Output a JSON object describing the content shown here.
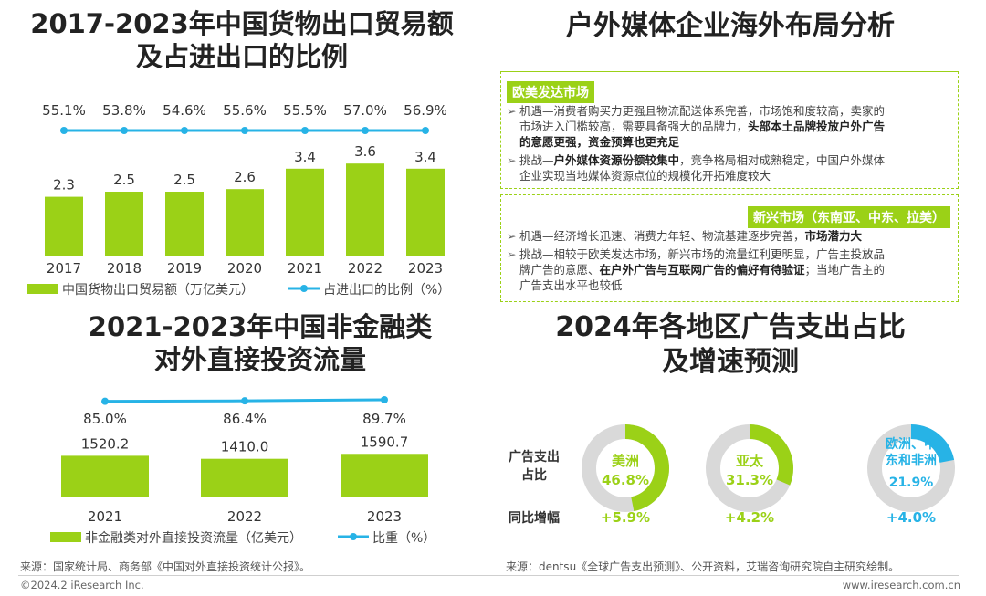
{
  "panel1": {
    "title_line1": "2017-2023年中国货物出口贸易额",
    "title_line2": "及占进出口的比例",
    "legend_bar": "中国货物出口贸易额（万亿美元）",
    "legend_line": "占进出口的比例（%）"
  },
  "panel2": {
    "title": "户外媒体企业海外布局分析",
    "market1": {
      "tag": "欧美发达市场",
      "b1_l1": "机遇—消费者购买力更强且物流配送体系完善，市场饱和度较高，卖家的",
      "b1_l2": "市场进入门槛较高，需要具备强大的品牌力，",
      "b1_l2_bold": "头部本土品牌投放户外广告",
      "b1_l3_bold": "的意愿更强，资金预算也更充足",
      "b2_l1_a": "挑战—",
      "b2_l1_bold": "户外媒体资源份额较集中",
      "b2_l1_b": "，竞争格局相对成熟稳定，中国户外媒体",
      "b2_l2": "企业实现当地媒体资源点位的规模化开拓难度较大"
    },
    "market2": {
      "tag": "新兴市场（东南亚、中东、拉美）",
      "b1_l1_a": "机遇—经济增长迅速、消费力年轻、物流基建逐步完善，",
      "b1_l1_bold": "市场潜力大",
      "b2_l1": "挑战—相较于欧美发达市场，新兴市场的流量红利更明显，广告主投放品",
      "b2_l2_a": "牌广告的意愿、",
      "b2_l2_bold": "在户外广告与互联网广告的偏好有待验证",
      "b2_l2_b": "；当地广告主的",
      "b2_l3": "广告支出水平也较低"
    }
  },
  "panel3": {
    "title_line1": "2021-2023年中国非金融类",
    "title_line2": "对外直接投资流量",
    "legend_bar": "非金融类对外直接投资流量（亿美元）",
    "legend_line": "比重（%）"
  },
  "panel4": {
    "title_line1": "2024年各地区广告支出占比",
    "title_line2": "及增速预测",
    "row_label_share": "广告支出占比",
    "row_label_growth": "同比增幅",
    "regions": [
      {
        "name": "美洲",
        "share": "46.8%",
        "share_value": 46.8,
        "growth": "+5.9%"
      },
      {
        "name": "亚太",
        "share": "31.3%",
        "share_value": 31.3,
        "growth": "+4.2%"
      },
      {
        "name": "欧洲、中东和非洲",
        "share": "21.9%",
        "share_value": 21.9,
        "growth": "+4.0%"
      }
    ]
  },
  "sources": {
    "left": "来源：国家统计局、商务部《中国对外直接投资统计公报》。",
    "right": "来源：dentsu《全球广告支出预测》、公开资料，艾瑞咨询研究院自主研究绘制。"
  },
  "footer": {
    "copyright": "©2024.2 iResearch Inc.",
    "website": "www.iresearch.com.cn"
  },
  "colors": {
    "bar": "#9bd117",
    "line": "#27b3e6",
    "donut_bg": "#d9d9d9"
  },
  "chart_data": [
    {
      "type": "bar",
      "title": "2017-2023年中国货物出口贸易额及占进出口的比例",
      "categories": [
        "2017",
        "2018",
        "2019",
        "2020",
        "2021",
        "2022",
        "2023"
      ],
      "series": [
        {
          "name": "中国货物出口贸易额（万亿美元）",
          "type": "bar",
          "values": [
            2.3,
            2.5,
            2.5,
            2.6,
            3.4,
            3.6,
            3.4
          ],
          "labels": [
            "2.3",
            "2.5",
            "2.5",
            "2.6",
            "3.4",
            "3.6",
            "3.4"
          ]
        },
        {
          "name": "占进出口的比例（%）",
          "type": "line",
          "values": [
            55.1,
            53.8,
            54.6,
            55.6,
            55.5,
            57.0,
            56.9
          ],
          "labels": [
            "55.1%",
            "53.8%",
            "54.6%",
            "55.6%",
            "55.5%",
            "57.0%",
            "56.9%"
          ]
        }
      ],
      "ylim": [
        0,
        4
      ]
    },
    {
      "type": "bar",
      "title": "2021-2023年中国非金融类对外直接投资流量",
      "categories": [
        "2021",
        "2022",
        "2023"
      ],
      "series": [
        {
          "name": "非金融类对外直接投资流量（亿美元）",
          "type": "bar",
          "values": [
            1520.2,
            1410.0,
            1590.7
          ],
          "labels": [
            "1520.2",
            "1410.0",
            "1590.7"
          ]
        },
        {
          "name": "比重（%）",
          "type": "line",
          "values": [
            85.0,
            86.4,
            89.7
          ],
          "labels": [
            "85.0%",
            "86.4%",
            "89.7%"
          ]
        }
      ],
      "ylim": [
        0,
        1600
      ]
    },
    {
      "type": "pie",
      "title": "2024年各地区广告支出占比及增速预测",
      "categories": [
        "美洲",
        "亚太",
        "欧洲、中东和非洲"
      ],
      "values": [
        46.8,
        31.3,
        21.9
      ],
      "growth": [
        5.9,
        4.2,
        4.0
      ]
    }
  ]
}
